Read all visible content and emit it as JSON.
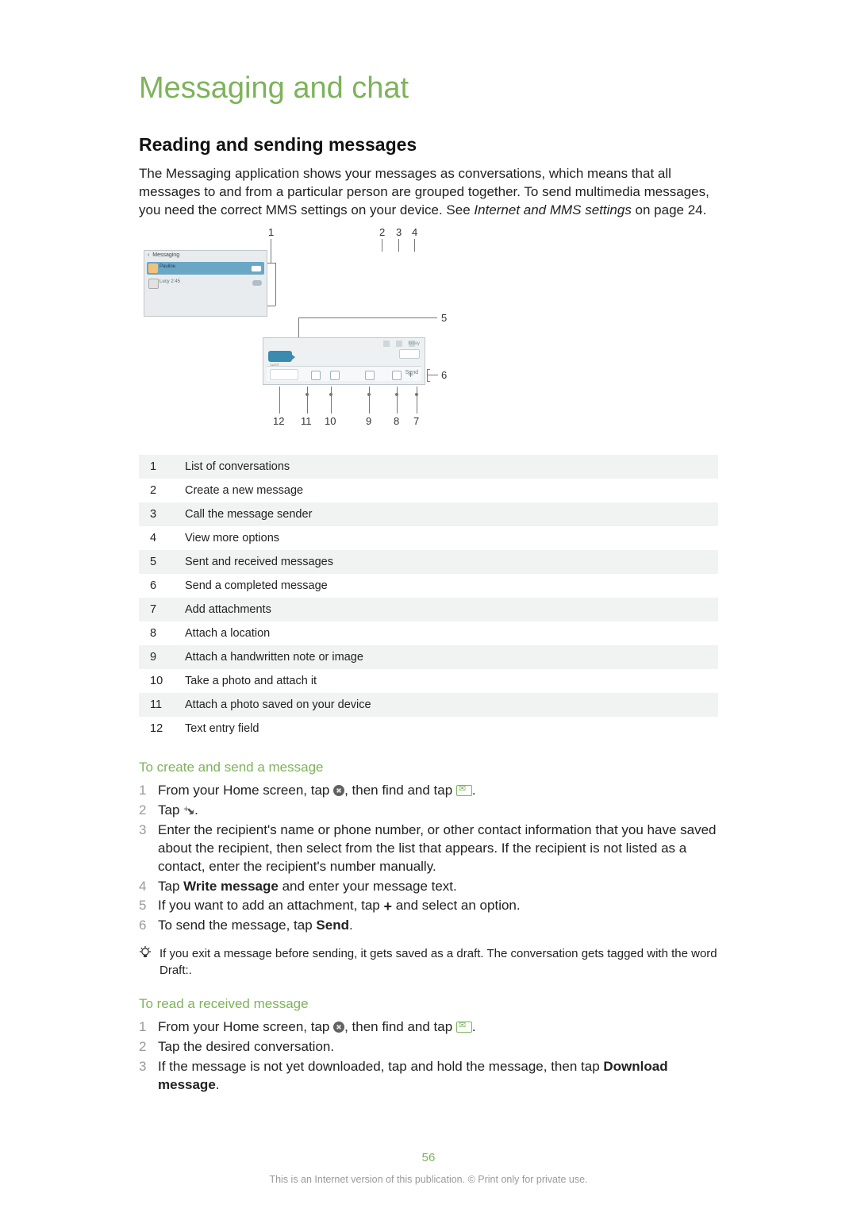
{
  "colors": {
    "accent": "#7db35a",
    "text": "#222222",
    "muted": "#9a9a9a",
    "row_alt_bg": "#f1f2f2",
    "diagram_panel_bg": "#e9ecee",
    "diagram_border": "#bfc7cc",
    "diagram_highlight": "#6aa7c5",
    "bubble": "#3a8bb0",
    "background": "#ffffff"
  },
  "typography": {
    "title_fontsize": 38,
    "subtitle_fontsize": 23,
    "body_fontsize": 17,
    "legend_fontsize": 14.5,
    "footer_fontsize": 12.5,
    "font_family": "Arial, Helvetica, sans-serif"
  },
  "title": "Messaging and chat",
  "subtitle": "Reading and sending messages",
  "intro": {
    "text": "The Messaging application shows your messages as conversations, which means that all messages to and from a particular person are grouped together. To send multimedia messages, you need the correct MMS settings on your device. See ",
    "link_text": "Internet and MMS settings",
    "suffix": " on page 24."
  },
  "diagram": {
    "callouts": [
      "1",
      "2",
      "3",
      "4",
      "5",
      "6",
      "7",
      "8",
      "9",
      "10",
      "11",
      "12"
    ],
    "left_panel_label": "Messaging",
    "row1_label": "Pauline",
    "row2_label": "Lucy 2:45"
  },
  "legend": [
    {
      "n": "1",
      "t": "List of conversations"
    },
    {
      "n": "2",
      "t": "Create a new message"
    },
    {
      "n": "3",
      "t": "Call the message sender"
    },
    {
      "n": "4",
      "t": "View more options"
    },
    {
      "n": "5",
      "t": "Sent and received messages"
    },
    {
      "n": "6",
      "t": "Send a completed message"
    },
    {
      "n": "7",
      "t": "Add attachments"
    },
    {
      "n": "8",
      "t": "Attach a location"
    },
    {
      "n": "9",
      "t": "Attach a handwritten note or image"
    },
    {
      "n": "10",
      "t": "Take a photo and attach it"
    },
    {
      "n": "11",
      "t": "Attach a photo saved on your device"
    },
    {
      "n": "12",
      "t": "Text entry field"
    }
  ],
  "howto1": {
    "title": "To create and send a message",
    "steps": [
      {
        "pre": "From your Home screen, tap ",
        "icon1": "apps",
        "mid": ", then find and tap ",
        "icon2": "msg",
        "post": "."
      },
      {
        "pre": "Tap ",
        "icon1": "newmsg",
        "post": "."
      },
      {
        "pre": "Enter the recipient's name or phone number, or other contact information that you have saved about the recipient, then select from the list that appears. If the recipient is not listed as a contact, enter the recipient's number manually."
      },
      {
        "pre": "Tap ",
        "bold1": "Write message",
        "post": " and enter your message text."
      },
      {
        "pre": "If you want to add an attachment, tap ",
        "icon1": "plus",
        "post": " and select an option."
      },
      {
        "pre": "To send the message, tap ",
        "bold1": "Send",
        "post": "."
      }
    ],
    "note": "If you exit a message before sending, it gets saved as a draft. The conversation gets tagged with the word Draft:."
  },
  "howto2": {
    "title": "To read a received message",
    "steps": [
      {
        "pre": "From your Home screen, tap ",
        "icon1": "apps",
        "mid": ", then find and tap ",
        "icon2": "msg",
        "post": "."
      },
      {
        "pre": "Tap the desired conversation."
      },
      {
        "pre": "If the message is not yet downloaded, tap and hold the message, then tap ",
        "bold1": "Download message",
        "post": "."
      }
    ]
  },
  "page_number": "56",
  "footer": "This is an Internet version of this publication. © Print only for private use."
}
